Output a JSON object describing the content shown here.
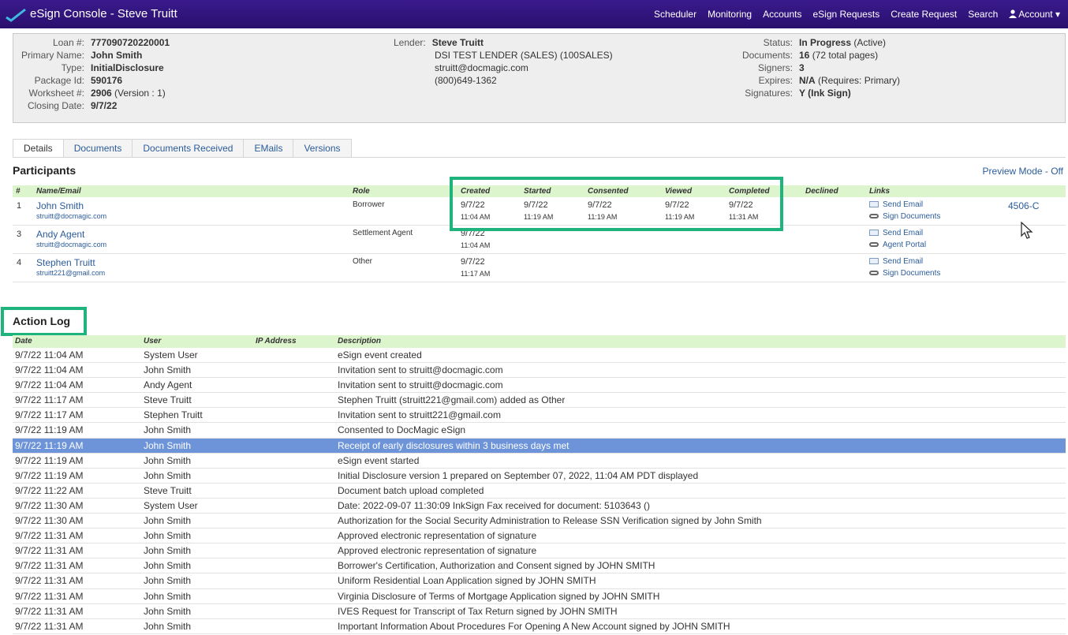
{
  "app": {
    "title": "eSign Console - Steve Truitt"
  },
  "nav": [
    "Scheduler",
    "Monitoring",
    "Accounts",
    "eSign Requests",
    "Create Request",
    "Search",
    "Account"
  ],
  "summary": {
    "loan_label": "Loan #:",
    "loan": "777090720220001",
    "primary_label": "Primary Name:",
    "primary": "John Smith",
    "type_label": "Type:",
    "type": "InitialDisclosure",
    "package_label": "Package Id:",
    "package": "590176",
    "worksheet_label": "Worksheet #:",
    "worksheet_num": "2906",
    "worksheet_ver": "(Version : 1)",
    "closing_label": "Closing Date:",
    "closing": "9/7/22",
    "lender_label": "Lender:",
    "lender_name": "Steve Truitt",
    "lender_line1": "DSI TEST LENDER (SALES) (100SALES)",
    "lender_email": "struitt@docmagic.com",
    "lender_phone": "(800)649-1362",
    "status_label": "Status:",
    "status": "In Progress",
    "status_note": "(Active)",
    "documents_label": "Documents:",
    "documents": "16",
    "documents_note": "(72 total pages)",
    "signers_label": "Signers:",
    "signers": "3",
    "expires_label": "Expires:",
    "expires": "N/A",
    "expires_note": "(Requires: Primary)",
    "signatures_label": "Signatures:",
    "signatures": "Y (Ink Sign)"
  },
  "tabs": [
    "Details",
    "Documents",
    "Documents Received",
    "EMails",
    "Versions"
  ],
  "participants": {
    "title": "Participants",
    "preview_mode": "Preview Mode - Off",
    "headers": [
      "#",
      "Name/Email",
      "Role",
      "Created",
      "Started",
      "Consented",
      "Viewed",
      "Completed",
      "Declined",
      "Links"
    ],
    "rows": [
      {
        "num": "1",
        "name": "John Smith",
        "email": "struitt@docmagic.com",
        "role": "Borrower",
        "created_d": "9/7/22",
        "created_t": "11:04 AM",
        "started_d": "9/7/22",
        "started_t": "11:19 AM",
        "consented_d": "9/7/22",
        "consented_t": "11:19 AM",
        "viewed_d": "9/7/22",
        "viewed_t": "11:19 AM",
        "completed_d": "9/7/22",
        "completed_t": "11:31 AM",
        "link1": "Send Email",
        "link2": "Sign Documents",
        "form": "4506-C"
      },
      {
        "num": "3",
        "name": "Andy Agent",
        "email": "struitt@docmagic.com",
        "role": "Settlement Agent",
        "created_d": "9/7/22",
        "created_t": "11:04 AM",
        "link1": "Send Email",
        "link2": "Agent Portal"
      },
      {
        "num": "4",
        "name": "Stephen Truitt",
        "email": "struitt221@gmail.com",
        "role": "Other",
        "created_d": "9/7/22",
        "created_t": "11:17 AM",
        "link1": "Send Email",
        "link2": "Sign Documents"
      }
    ]
  },
  "action_log": {
    "title": "Action Log",
    "headers": [
      "Date",
      "User",
      "IP Address",
      "Description"
    ],
    "rows": [
      [
        "9/7/22 11:04 AM",
        "System User",
        "eSign event created"
      ],
      [
        "9/7/22 11:04 AM",
        "John Smith",
        "Invitation sent to struitt@docmagic.com"
      ],
      [
        "9/7/22 11:04 AM",
        "Andy Agent",
        "Invitation sent to struitt@docmagic.com"
      ],
      [
        "9/7/22 11:17 AM",
        "Steve Truitt",
        "Stephen Truitt (struitt221@gmail.com) added as Other"
      ],
      [
        "9/7/22 11:17 AM",
        "Stephen Truitt",
        "Invitation sent to struitt221@gmail.com"
      ],
      [
        "9/7/22 11:19 AM",
        "John Smith",
        "Consented to DocMagic eSign"
      ],
      [
        "9/7/22 11:19 AM",
        "John Smith",
        "Receipt of early disclosures within 3 business days met"
      ],
      [
        "9/7/22 11:19 AM",
        "John Smith",
        "eSign event started"
      ],
      [
        "9/7/22 11:19 AM",
        "John Smith",
        "Initial Disclosure version 1 prepared on September 07, 2022, 11:04 AM PDT displayed"
      ],
      [
        "9/7/22 11:22 AM",
        "Steve Truitt",
        "Document batch upload completed"
      ],
      [
        "9/7/22 11:30 AM",
        "System User",
        "Date: 2022-09-07 11:30:09 InkSign Fax received for document: 5103643 ()"
      ],
      [
        "9/7/22 11:30 AM",
        "John Smith",
        "Authorization for the Social Security Administration to Release SSN Verification signed by John Smith"
      ],
      [
        "9/7/22 11:31 AM",
        "John Smith",
        "Approved electronic representation of signature"
      ],
      [
        "9/7/22 11:31 AM",
        "John Smith",
        "Approved electronic representation of signature"
      ],
      [
        "9/7/22 11:31 AM",
        "John Smith",
        "Borrower's Certification, Authorization and Consent signed by JOHN SMITH"
      ],
      [
        "9/7/22 11:31 AM",
        "John Smith",
        "Uniform Residential Loan Application signed by JOHN SMITH"
      ],
      [
        "9/7/22 11:31 AM",
        "John Smith",
        "Virginia Disclosure of Terms of Mortgage Application signed by JOHN SMITH"
      ],
      [
        "9/7/22 11:31 AM",
        "John Smith",
        "IVES Request for Transcript of Tax Return signed by JOHN SMITH"
      ],
      [
        "9/7/22 11:31 AM",
        "John Smith",
        "Important Information About Procedures For Opening A New Account signed by JOHN SMITH"
      ]
    ]
  },
  "colors": {
    "topbar": "#2a0f6e",
    "header_green": "#ddf5cd",
    "highlight": "#1fb37d",
    "selected_row": "#6d94d9",
    "link": "#2b5c9a"
  },
  "icons": [
    "check-logo-icon",
    "account-user-icon",
    "document-add-icon",
    "pdf-icon",
    "lock-user-icon",
    "print-icon",
    "refresh-icon",
    "secure-icon",
    "envelope-icon",
    "link-chain-icon",
    "cursor-arrow-icon"
  ]
}
